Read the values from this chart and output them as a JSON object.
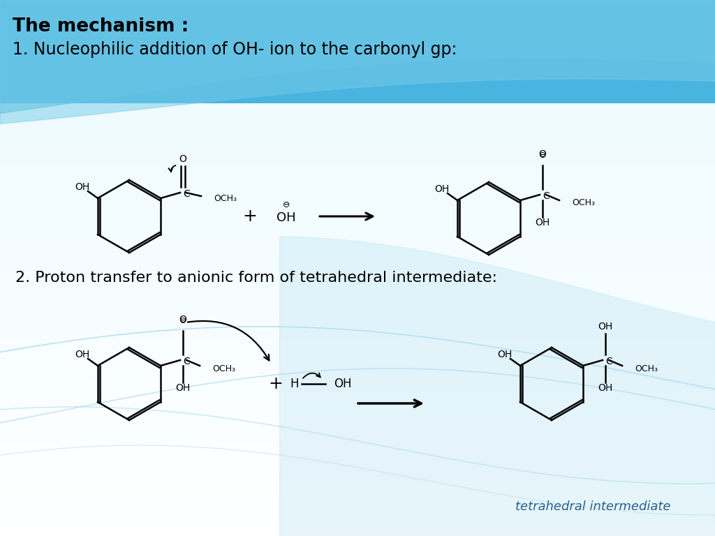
{
  "title_line1": "The mechanism :",
  "title_line2": "1. Nucleophilic addition of OH- ion to the carbonyl gp:",
  "subtitle2": "2. Proton transfer to anionic form of tetrahedral intermediate:",
  "footer": "tetrahedral intermediate",
  "banner_color": "#4ab4e0",
  "bg_color": "#e8f6fc",
  "wave1_color": "#6cc4e8",
  "wave2_color": "#8dcfe8",
  "text_color": "#000000"
}
